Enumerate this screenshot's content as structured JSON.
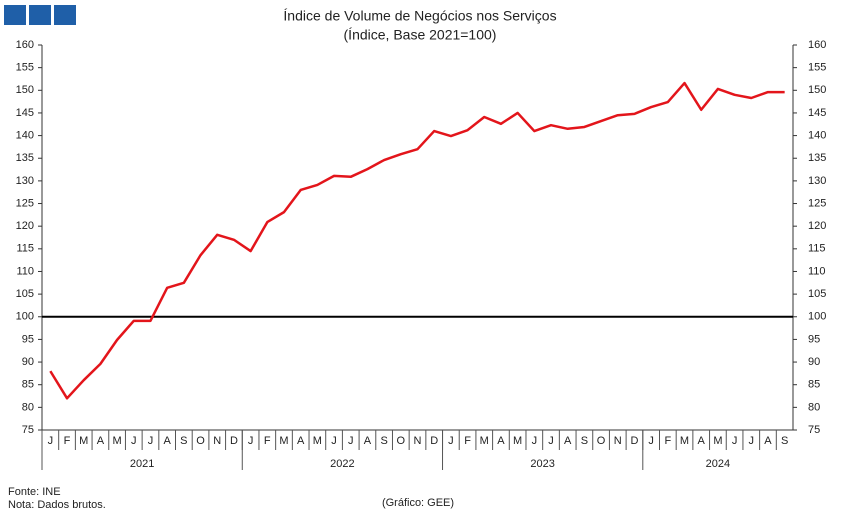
{
  "chart_data": {
    "type": "line",
    "title": "Índice de Volume de Negócios nos Serviços",
    "subtitle": "(Índice, Base 2021=100)",
    "categories": [
      "J",
      "F",
      "M",
      "A",
      "M",
      "J",
      "J",
      "A",
      "S",
      "O",
      "N",
      "D",
      "J",
      "F",
      "M",
      "A",
      "M",
      "J",
      "J",
      "A",
      "S",
      "O",
      "N",
      "D",
      "J",
      "F",
      "M",
      "A",
      "M",
      "J",
      "J",
      "A",
      "S",
      "O",
      "N",
      "D",
      "J",
      "F",
      "M",
      "A",
      "M",
      "J",
      "J",
      "A",
      "S"
    ],
    "year_groups": [
      {
        "label": "2021",
        "months": 12
      },
      {
        "label": "2022",
        "months": 12
      },
      {
        "label": "2023",
        "months": 12
      },
      {
        "label": "2024",
        "months": 9
      }
    ],
    "series": [
      {
        "color": "#e3151b",
        "values": [
          88,
          82,
          86,
          89.6,
          94.9,
          99.1,
          99.1,
          106.4,
          107.5,
          113.6,
          118.1,
          117,
          114.5,
          120.9,
          123.1,
          128,
          129.1,
          131.1,
          130.9,
          132.6,
          134.6,
          135.9,
          137,
          141,
          139.9,
          141.2,
          144.1,
          142.6,
          145,
          141,
          142.3,
          141.5,
          141.9,
          143.2,
          144.5,
          144.8,
          146.3,
          147.4,
          151.6,
          145.7,
          150.3,
          149,
          148.3,
          149.6,
          149.6
        ]
      }
    ],
    "reference_line": 100,
    "ylim": [
      75,
      160
    ],
    "yticks": [
      75,
      80,
      85,
      90,
      95,
      100,
      105,
      110,
      115,
      120,
      125,
      130,
      135,
      140,
      145,
      150,
      155,
      160
    ],
    "y2lim": [
      75,
      160
    ],
    "y2ticks": [
      75,
      80,
      85,
      90,
      95,
      100,
      105,
      110,
      115,
      120,
      125,
      130,
      135,
      140,
      145,
      150,
      155,
      160
    ],
    "source": "Fonte: INE",
    "note": "Nota: Dados brutos.",
    "credit": "(Gráfico: GEE)"
  }
}
